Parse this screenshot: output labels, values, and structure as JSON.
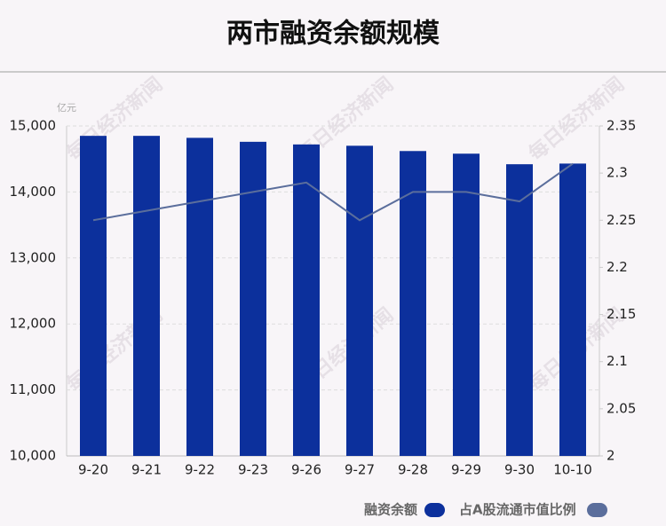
{
  "chart_data": {
    "type": "bar-line",
    "title": "两市融资余额规模",
    "y_unit": "亿元",
    "watermark": "每日经济新闻",
    "categories": [
      "9-20",
      "9-21",
      "9-22",
      "9-23",
      "9-26",
      "9-27",
      "9-28",
      "9-29",
      "9-30",
      "10-10"
    ],
    "series": [
      {
        "name": "融资余额",
        "type": "bar",
        "color": "#0c309c",
        "values": [
          14850,
          14850,
          14820,
          14760,
          14720,
          14700,
          14620,
          14580,
          14420,
          14430
        ]
      },
      {
        "name": "占A股流通市值比例",
        "type": "line",
        "axis": "y2",
        "color": "#5b6e9c",
        "values": [
          2.25,
          2.26,
          2.27,
          2.28,
          2.29,
          2.25,
          2.28,
          2.28,
          2.27,
          2.31
        ]
      }
    ],
    "ylim": [
      10000,
      15000
    ],
    "yticks": [
      {
        "value": 10000,
        "label": "10,000"
      },
      {
        "value": 11000,
        "label": "11,000"
      },
      {
        "value": 12000,
        "label": "12,000"
      },
      {
        "value": 13000,
        "label": "13,000"
      },
      {
        "value": 14000,
        "label": "14,000"
      },
      {
        "value": 15000,
        "label": "15,000"
      }
    ],
    "y2lim": [
      2,
      2.35
    ],
    "y2ticks": [
      2,
      2.05,
      2.1,
      2.15,
      2.2,
      2.25,
      2.3,
      2.35
    ],
    "grid": true
  }
}
